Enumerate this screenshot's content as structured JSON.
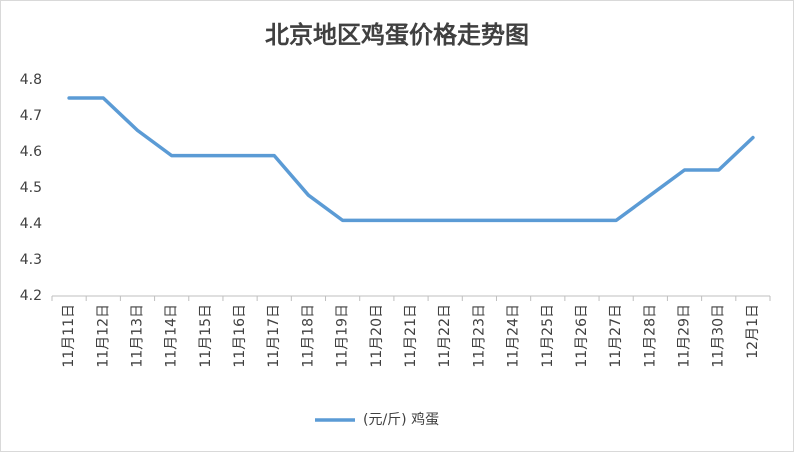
{
  "chart_data": {
    "type": "line",
    "title": "北京地区鸡蛋价格走势图",
    "categories": [
      "11月11日",
      "11月12日",
      "11月13日",
      "11月14日",
      "11月15日",
      "11月16日",
      "11月17日",
      "11月18日",
      "11月19日",
      "11月20日",
      "11月21日",
      "11月22日",
      "11月23日",
      "11月24日",
      "11月25日",
      "11月26日",
      "11月27日",
      "11月28日",
      "11月29日",
      "11月30日",
      "12月1日"
    ],
    "series": [
      {
        "name": "(元/斤) 鸡蛋",
        "color": "#5b9bd5",
        "values": [
          4.75,
          4.75,
          4.66,
          4.59,
          4.59,
          4.59,
          4.59,
          4.48,
          4.41,
          4.41,
          4.41,
          4.41,
          4.41,
          4.41,
          4.41,
          4.41,
          4.41,
          4.48,
          4.55,
          4.55,
          4.64
        ]
      }
    ],
    "ylim": [
      4.2,
      4.8
    ],
    "yticks": [
      4.2,
      4.3,
      4.4,
      4.5,
      4.6,
      4.7,
      4.8
    ],
    "grid": false,
    "legend": "bottom"
  }
}
